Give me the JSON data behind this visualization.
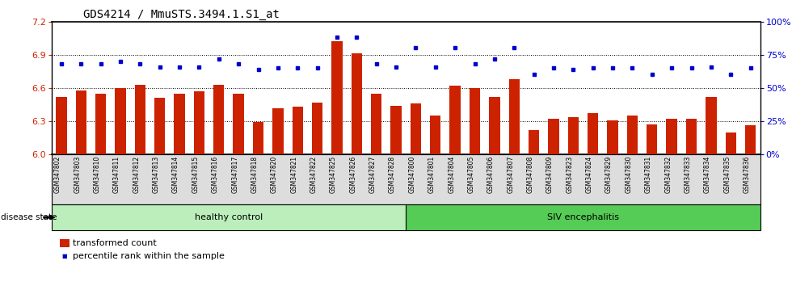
{
  "title": "GDS4214 / MmuSTS.3494.1.S1_at",
  "samples": [
    "GSM347802",
    "GSM347803",
    "GSM347810",
    "GSM347811",
    "GSM347812",
    "GSM347813",
    "GSM347814",
    "GSM347815",
    "GSM347816",
    "GSM347817",
    "GSM347818",
    "GSM347820",
    "GSM347821",
    "GSM347822",
    "GSM347825",
    "GSM347826",
    "GSM347827",
    "GSM347828",
    "GSM347800",
    "GSM347801",
    "GSM347804",
    "GSM347805",
    "GSM347806",
    "GSM347807",
    "GSM347808",
    "GSM347809",
    "GSM347823",
    "GSM347824",
    "GSM347829",
    "GSM347830",
    "GSM347831",
    "GSM347832",
    "GSM347833",
    "GSM347834",
    "GSM347835",
    "GSM347836"
  ],
  "bar_values": [
    6.52,
    6.58,
    6.55,
    6.6,
    6.63,
    6.51,
    6.55,
    6.57,
    6.63,
    6.55,
    6.29,
    6.42,
    6.43,
    6.47,
    7.02,
    6.91,
    6.55,
    6.44,
    6.46,
    6.35,
    6.62,
    6.6,
    6.52,
    6.68,
    6.22,
    6.32,
    6.34,
    6.37,
    6.31,
    6.35,
    6.27,
    6.32,
    6.32,
    6.52,
    6.2,
    6.26
  ],
  "percentile_values": [
    68,
    68,
    68,
    70,
    68,
    66,
    66,
    66,
    72,
    68,
    64,
    65,
    65,
    65,
    88,
    88,
    68,
    66,
    80,
    66,
    80,
    68,
    72,
    80,
    60,
    65,
    64,
    65,
    65,
    65,
    60,
    65,
    65,
    66,
    60,
    65
  ],
  "ylim_left": [
    6.0,
    7.2
  ],
  "ylim_right": [
    0,
    100
  ],
  "yticks_left": [
    6.0,
    6.3,
    6.6,
    6.9,
    7.2
  ],
  "yticks_right": [
    0,
    25,
    50,
    75,
    100
  ],
  "ytick_labels_right": [
    "0%",
    "25%",
    "50%",
    "75%",
    "100%"
  ],
  "bar_color": "#CC2200",
  "dot_color": "#0000CC",
  "healthy_control_count": 18,
  "healthy_label": "healthy control",
  "siv_label": "SIV encephalitis",
  "healthy_color": "#BBEEBB",
  "siv_color": "#55CC55",
  "disease_label": "disease state",
  "legend_bar_label": "transformed count",
  "legend_dot_label": "percentile rank within the sample",
  "title_fontsize": 10,
  "xtick_bg": "#DDDDDD",
  "grid_dotted_color": "#333333",
  "ytick_label_fontsize": 8,
  "xtick_label_fontsize": 5.5
}
